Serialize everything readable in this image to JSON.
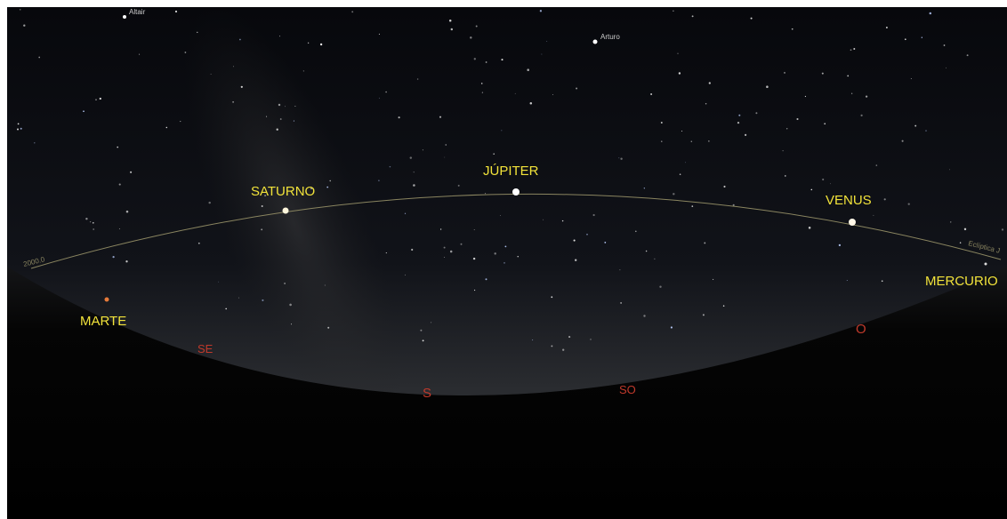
{
  "stars": [
    "Altair",
    "Arturo"
  ],
  "planets": [
    "SATURNO",
    "JÚPITER",
    "VENUS",
    "MERCURIO",
    "MARTE"
  ],
  "directions": [
    "SE",
    "S",
    "SO",
    "O"
  ],
  "ecliptic_labels": [
    "2000.0",
    "Eclíptica J"
  ]
}
